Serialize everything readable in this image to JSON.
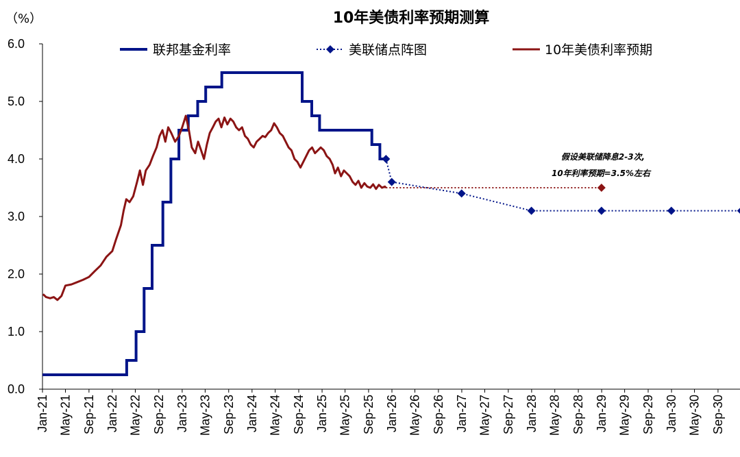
{
  "chart_data": {
    "type": "line",
    "title": "10年美债利率预期测算",
    "ylabel": "（%）",
    "ylim": [
      0,
      6
    ],
    "yticks": [
      "0.0",
      "1.0",
      "2.0",
      "3.0",
      "4.0",
      "5.0",
      "6.0"
    ],
    "x_tick_labels": [
      "Jan-21",
      "May-21",
      "Sep-21",
      "Jan-22",
      "May-22",
      "Sep-22",
      "Jan-23",
      "May-23",
      "Sep-23",
      "Jan-24",
      "May-24",
      "Sep-24",
      "Jan-25",
      "May-25",
      "Sep-25",
      "Jan-26",
      "May-26",
      "Sep-26",
      "Jan-27",
      "May-27",
      "Sep-27",
      "Jan-28",
      "May-28",
      "Sep-28",
      "Jan-29",
      "May-29",
      "Sep-29",
      "Jan-30",
      "May-30",
      "Sep-30"
    ],
    "grid": false,
    "legend_position": "top",
    "series": [
      {
        "name": "联邦基金利率",
        "color": "#001489",
        "style": "step",
        "points": [
          [
            "2021-01-01",
            0.25
          ],
          [
            "2022-03-17",
            0.5
          ],
          [
            "2022-05-05",
            1.0
          ],
          [
            "2022-06-16",
            1.75
          ],
          [
            "2022-07-28",
            2.5
          ],
          [
            "2022-09-22",
            3.25
          ],
          [
            "2022-11-03",
            4.0
          ],
          [
            "2022-12-15",
            4.5
          ],
          [
            "2023-02-02",
            4.75
          ],
          [
            "2023-03-23",
            5.0
          ],
          [
            "2023-05-04",
            5.25
          ],
          [
            "2023-07-27",
            5.5
          ],
          [
            "2024-09-19",
            5.0
          ],
          [
            "2024-11-08",
            4.75
          ],
          [
            "2024-12-19",
            4.5
          ],
          [
            "2025-09-18",
            4.25
          ],
          [
            "2025-10-30",
            4.0
          ],
          [
            "2025-12-01",
            4.0
          ]
        ]
      },
      {
        "name": "美联储点阵图",
        "color": "#001489",
        "style": "dotted-markers",
        "points": [
          [
            "2025-12-01",
            4.0
          ],
          [
            "2025-12-31",
            3.6
          ],
          [
            "2026-12-31",
            3.4
          ],
          [
            "2027-12-31",
            3.1
          ],
          [
            "2028-12-31",
            3.1
          ],
          [
            "2029-12-31",
            3.1
          ],
          [
            "2030-12-31",
            3.1
          ]
        ]
      },
      {
        "name": "10年美债利率预期",
        "color": "#8B1414",
        "style": "line",
        "points": [
          [
            "2021-01-04",
            1.65
          ],
          [
            "2021-01-20",
            1.6
          ],
          [
            "2021-02-10",
            1.58
          ],
          [
            "2021-03-01",
            1.6
          ],
          [
            "2021-03-20",
            1.55
          ],
          [
            "2021-04-10",
            1.62
          ],
          [
            "2021-05-01",
            1.8
          ],
          [
            "2021-06-01",
            1.82
          ],
          [
            "2021-07-01",
            1.86
          ],
          [
            "2021-08-01",
            1.9
          ],
          [
            "2021-09-01",
            1.95
          ],
          [
            "2021-10-01",
            2.05
          ],
          [
            "2021-11-01",
            2.15
          ],
          [
            "2021-12-01",
            2.3
          ],
          [
            "2022-01-01",
            2.4
          ],
          [
            "2022-01-20",
            2.6
          ],
          [
            "2022-02-15",
            2.85
          ],
          [
            "2022-03-01",
            3.1
          ],
          [
            "2022-03-15",
            3.3
          ],
          [
            "2022-04-01",
            3.25
          ],
          [
            "2022-04-20",
            3.35
          ],
          [
            "2022-05-10",
            3.6
          ],
          [
            "2022-05-25",
            3.8
          ],
          [
            "2022-06-10",
            3.55
          ],
          [
            "2022-06-25",
            3.8
          ],
          [
            "2022-07-15",
            3.9
          ],
          [
            "2022-08-01",
            4.05
          ],
          [
            "2022-08-20",
            4.2
          ],
          [
            "2022-09-05",
            4.4
          ],
          [
            "2022-09-20",
            4.5
          ],
          [
            "2022-10-05",
            4.3
          ],
          [
            "2022-10-20",
            4.55
          ],
          [
            "2022-11-05",
            4.45
          ],
          [
            "2022-11-25",
            4.3
          ],
          [
            "2022-12-15",
            4.4
          ],
          [
            "2023-01-01",
            4.55
          ],
          [
            "2023-01-20",
            4.75
          ],
          [
            "2023-02-05",
            4.5
          ],
          [
            "2023-02-20",
            4.2
          ],
          [
            "2023-03-10",
            4.1
          ],
          [
            "2023-03-25",
            4.3
          ],
          [
            "2023-04-10",
            4.15
          ],
          [
            "2023-04-25",
            4.0
          ],
          [
            "2023-05-10",
            4.25
          ],
          [
            "2023-05-25",
            4.45
          ],
          [
            "2023-06-10",
            4.55
          ],
          [
            "2023-06-25",
            4.65
          ],
          [
            "2023-07-10",
            4.7
          ],
          [
            "2023-07-25",
            4.55
          ],
          [
            "2023-08-10",
            4.72
          ],
          [
            "2023-08-25",
            4.6
          ],
          [
            "2023-09-10",
            4.7
          ],
          [
            "2023-09-25",
            4.65
          ],
          [
            "2023-10-10",
            4.55
          ],
          [
            "2023-10-25",
            4.5
          ],
          [
            "2023-11-10",
            4.55
          ],
          [
            "2023-11-25",
            4.4
          ],
          [
            "2023-12-10",
            4.35
          ],
          [
            "2023-12-25",
            4.25
          ],
          [
            "2024-01-10",
            4.2
          ],
          [
            "2024-01-25",
            4.3
          ],
          [
            "2024-02-10",
            4.35
          ],
          [
            "2024-02-25",
            4.4
          ],
          [
            "2024-03-10",
            4.38
          ],
          [
            "2024-03-25",
            4.45
          ],
          [
            "2024-04-10",
            4.5
          ],
          [
            "2024-04-25",
            4.62
          ],
          [
            "2024-05-10",
            4.55
          ],
          [
            "2024-05-25",
            4.45
          ],
          [
            "2024-06-10",
            4.4
          ],
          [
            "2024-06-25",
            4.3
          ],
          [
            "2024-07-10",
            4.2
          ],
          [
            "2024-07-25",
            4.15
          ],
          [
            "2024-08-10",
            4.0
          ],
          [
            "2024-08-25",
            3.95
          ],
          [
            "2024-09-10",
            3.85
          ],
          [
            "2024-09-25",
            3.95
          ],
          [
            "2024-10-10",
            4.05
          ],
          [
            "2024-10-25",
            4.15
          ],
          [
            "2024-11-10",
            4.2
          ],
          [
            "2024-11-25",
            4.1
          ],
          [
            "2024-12-10",
            4.15
          ],
          [
            "2024-12-25",
            4.2
          ],
          [
            "2025-01-10",
            4.15
          ],
          [
            "2025-01-25",
            4.05
          ],
          [
            "2025-02-10",
            4.0
          ],
          [
            "2025-02-25",
            3.9
          ],
          [
            "2025-03-10",
            3.75
          ],
          [
            "2025-03-25",
            3.85
          ],
          [
            "2025-04-10",
            3.7
          ],
          [
            "2025-04-25",
            3.8
          ],
          [
            "2025-05-10",
            3.75
          ],
          [
            "2025-05-25",
            3.7
          ],
          [
            "2025-06-10",
            3.6
          ],
          [
            "2025-06-25",
            3.55
          ],
          [
            "2025-07-10",
            3.62
          ],
          [
            "2025-07-25",
            3.5
          ],
          [
            "2025-08-10",
            3.58
          ],
          [
            "2025-08-25",
            3.52
          ],
          [
            "2025-09-10",
            3.5
          ],
          [
            "2025-09-25",
            3.56
          ],
          [
            "2025-10-10",
            3.48
          ],
          [
            "2025-10-25",
            3.55
          ],
          [
            "2025-11-10",
            3.5
          ],
          [
            "2025-11-25",
            3.52
          ],
          [
            "2025-12-01",
            3.5
          ]
        ]
      },
      {
        "name": "",
        "color": "#8B1414",
        "style": "dotted-end-marker",
        "points": [
          [
            "2025-12-01",
            3.5
          ],
          [
            "2028-12-31",
            3.5
          ]
        ]
      }
    ],
    "annotations": [
      "假设美联储降息2-3次,",
      "10年利率预期=3.5%左右"
    ]
  }
}
